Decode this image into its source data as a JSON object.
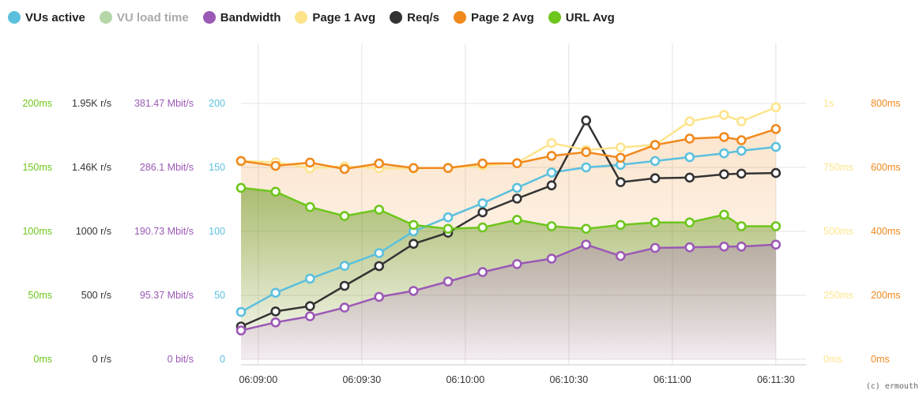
{
  "legend": [
    {
      "key": "vus",
      "label": "VUs active",
      "color": "#5bc0de",
      "muted": false
    },
    {
      "key": "load",
      "label": "VU load time",
      "color": "#b5d6a7",
      "muted": true
    },
    {
      "key": "bw",
      "label": "Bandwidth",
      "color": "#9b59b6",
      "muted": false
    },
    {
      "key": "p1",
      "label": "Page 1 Avg",
      "color": "#fde48b",
      "muted": false
    },
    {
      "key": "req",
      "label": "Req/s",
      "color": "#333333",
      "muted": false
    },
    {
      "key": "p2",
      "label": "Page 2 Avg",
      "color": "#f0891e",
      "muted": false
    },
    {
      "key": "url",
      "label": "URL Avg",
      "color": "#6ec61c",
      "muted": false
    }
  ],
  "credit": "(c) ermouth",
  "chart_data": {
    "type": "line",
    "x_labels": [
      "06:09:00",
      "06:09:30",
      "06:10:00",
      "06:10:30",
      "06:11:00",
      "06:11:30"
    ],
    "x": [
      "06:08:55",
      "06:09:05",
      "06:09:15",
      "06:09:25",
      "06:09:35",
      "06:09:45",
      "06:09:55",
      "06:10:05",
      "06:10:15",
      "06:10:25",
      "06:10:35",
      "06:10:45",
      "06:10:55",
      "06:11:05",
      "06:11:15",
      "06:11:20",
      "06:11:30"
    ],
    "left_axes": [
      {
        "key": "url",
        "color": "#6ec61c",
        "ticks": [
          "0ms",
          "50ms",
          "100ms",
          "150ms",
          "200ms"
        ]
      },
      {
        "key": "req",
        "color": "#333333",
        "ticks": [
          "0 r/s",
          "500 r/s",
          "1000 r/s",
          "1.46K r/s",
          "1.95K r/s"
        ]
      },
      {
        "key": "bw",
        "color": "#9b59b6",
        "ticks": [
          "0 bit/s",
          "95.37 Mbit/s",
          "190.73 Mbit/s",
          "286.1 Mbit/s",
          "381.47 Mbit/s"
        ]
      },
      {
        "key": "vus",
        "color": "#5bc0de",
        "ticks": [
          "0",
          "50",
          "100",
          "150",
          "200"
        ]
      }
    ],
    "right_axes": [
      {
        "key": "p1",
        "color": "#fde48b",
        "ticks": [
          "0ms",
          "250ms",
          "500ms",
          "750ms",
          "1s"
        ]
      },
      {
        "key": "p2",
        "color": "#f0891e",
        "ticks": [
          "0ms",
          "200ms",
          "400ms",
          "600ms",
          "800ms"
        ]
      }
    ],
    "y_fraction_range": [
      0,
      1.3
    ],
    "series": [
      {
        "key": "vus",
        "name": "VUs active",
        "color": "#5bc0de",
        "unit": "VUs",
        "max": 200,
        "fill": false,
        "values": [
          37,
          52,
          63,
          73,
          83,
          100,
          111,
          122,
          134,
          146,
          150,
          152,
          155,
          158,
          161,
          163,
          166
        ]
      },
      {
        "key": "req",
        "name": "Req/s",
        "color": "#333333",
        "unit": "r/s",
        "max": 1950,
        "fill": false,
        "values": [
          250,
          365,
          405,
          560,
          710,
          880,
          965,
          1120,
          1225,
          1325,
          1820,
          1350,
          1380,
          1385,
          1410,
          1415,
          1420
        ]
      },
      {
        "key": "bw",
        "name": "Bandwidth",
        "color": "#9b59b6",
        "unit": "Mbit/s",
        "max": 381.47,
        "fill": true,
        "values": [
          43,
          55,
          64,
          77,
          93,
          102,
          116,
          130,
          142,
          150,
          171,
          154,
          166,
          167,
          168,
          168,
          171
        ]
      },
      {
        "key": "p1",
        "name": "Page 1 Avg",
        "color": "#fde48b",
        "unit": "ms",
        "max": 1000,
        "fill": false,
        "values": [
          775,
          770,
          747,
          754,
          747,
          746,
          748,
          757,
          767,
          845,
          818,
          828,
          838,
          930,
          955,
          930,
          985
        ]
      },
      {
        "key": "p2",
        "name": "Page 2 Avg",
        "color": "#f0891e",
        "unit": "ms",
        "max": 800,
        "fill": true,
        "values": [
          620,
          605,
          615,
          595,
          612,
          598,
          598,
          612,
          613,
          636,
          648,
          630,
          670,
          690,
          695,
          685,
          720
        ]
      },
      {
        "key": "url",
        "name": "URL Avg",
        "color": "#6ec61c",
        "unit": "ms",
        "max": 200,
        "fill": true,
        "values": [
          134,
          131,
          119,
          112,
          117,
          105,
          102,
          103,
          109,
          104,
          102,
          105,
          107,
          107,
          113,
          104,
          104
        ]
      }
    ]
  }
}
